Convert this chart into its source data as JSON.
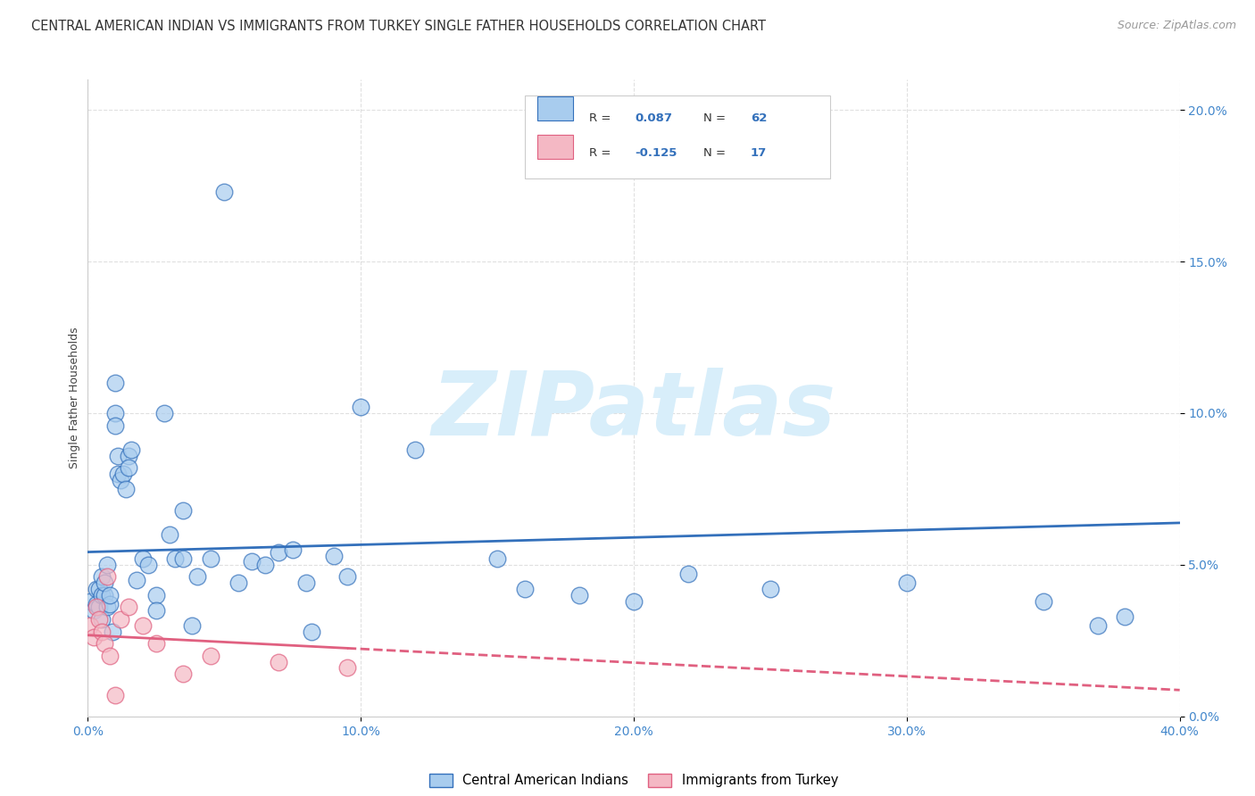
{
  "title": "CENTRAL AMERICAN INDIAN VS IMMIGRANTS FROM TURKEY SINGLE FATHER HOUSEHOLDS CORRELATION CHART",
  "source": "Source: ZipAtlas.com",
  "xlabel_bottom": [
    "Central American Indians",
    "Immigrants from Turkey"
  ],
  "ylabel": "Single Father Households",
  "watermark": "ZIPatlas",
  "r_blue": 0.087,
  "n_blue": 62,
  "r_pink": -0.125,
  "n_pink": 17,
  "xlim": [
    0.0,
    0.4
  ],
  "ylim": [
    0.0,
    0.21
  ],
  "yticks": [
    0.0,
    0.05,
    0.1,
    0.15,
    0.2
  ],
  "xticks": [
    0.0,
    0.1,
    0.2,
    0.3,
    0.4
  ],
  "blue_color": "#A8CCEE",
  "pink_color": "#F4B8C4",
  "blue_line_color": "#3370BB",
  "pink_line_color": "#E06080",
  "blue_points": [
    [
      0.001,
      0.038
    ],
    [
      0.002,
      0.035
    ],
    [
      0.003,
      0.042
    ],
    [
      0.003,
      0.037
    ],
    [
      0.004,
      0.042
    ],
    [
      0.004,
      0.036
    ],
    [
      0.005,
      0.04
    ],
    [
      0.005,
      0.046
    ],
    [
      0.005,
      0.032
    ],
    [
      0.006,
      0.04
    ],
    [
      0.006,
      0.044
    ],
    [
      0.007,
      0.05
    ],
    [
      0.007,
      0.036
    ],
    [
      0.008,
      0.037
    ],
    [
      0.008,
      0.04
    ],
    [
      0.009,
      0.028
    ],
    [
      0.01,
      0.11
    ],
    [
      0.01,
      0.1
    ],
    [
      0.01,
      0.096
    ],
    [
      0.011,
      0.086
    ],
    [
      0.011,
      0.08
    ],
    [
      0.012,
      0.078
    ],
    [
      0.013,
      0.08
    ],
    [
      0.014,
      0.075
    ],
    [
      0.015,
      0.086
    ],
    [
      0.015,
      0.082
    ],
    [
      0.016,
      0.088
    ],
    [
      0.018,
      0.045
    ],
    [
      0.02,
      0.052
    ],
    [
      0.022,
      0.05
    ],
    [
      0.025,
      0.04
    ],
    [
      0.025,
      0.035
    ],
    [
      0.028,
      0.1
    ],
    [
      0.03,
      0.06
    ],
    [
      0.032,
      0.052
    ],
    [
      0.035,
      0.052
    ],
    [
      0.035,
      0.068
    ],
    [
      0.038,
      0.03
    ],
    [
      0.04,
      0.046
    ],
    [
      0.045,
      0.052
    ],
    [
      0.05,
      0.173
    ],
    [
      0.055,
      0.044
    ],
    [
      0.06,
      0.051
    ],
    [
      0.065,
      0.05
    ],
    [
      0.07,
      0.054
    ],
    [
      0.075,
      0.055
    ],
    [
      0.08,
      0.044
    ],
    [
      0.082,
      0.028
    ],
    [
      0.09,
      0.053
    ],
    [
      0.095,
      0.046
    ],
    [
      0.1,
      0.102
    ],
    [
      0.12,
      0.088
    ],
    [
      0.15,
      0.052
    ],
    [
      0.16,
      0.042
    ],
    [
      0.18,
      0.04
    ],
    [
      0.2,
      0.038
    ],
    [
      0.22,
      0.047
    ],
    [
      0.25,
      0.042
    ],
    [
      0.3,
      0.044
    ],
    [
      0.35,
      0.038
    ],
    [
      0.37,
      0.03
    ],
    [
      0.38,
      0.033
    ]
  ],
  "pink_points": [
    [
      0.001,
      0.03
    ],
    [
      0.002,
      0.026
    ],
    [
      0.003,
      0.036
    ],
    [
      0.004,
      0.032
    ],
    [
      0.005,
      0.028
    ],
    [
      0.006,
      0.024
    ],
    [
      0.007,
      0.046
    ],
    [
      0.008,
      0.02
    ],
    [
      0.01,
      0.007
    ],
    [
      0.012,
      0.032
    ],
    [
      0.015,
      0.036
    ],
    [
      0.02,
      0.03
    ],
    [
      0.025,
      0.024
    ],
    [
      0.035,
      0.014
    ],
    [
      0.045,
      0.02
    ],
    [
      0.07,
      0.018
    ],
    [
      0.095,
      0.016
    ]
  ],
  "grid_color": "#CCCCCC",
  "bg_color": "#FFFFFF",
  "title_fontsize": 10.5,
  "axis_fontsize": 9,
  "tick_fontsize": 10,
  "source_fontsize": 9,
  "watermark_color": "#D8EEFA",
  "watermark_fontsize": 72,
  "tick_color": "#4488CC"
}
